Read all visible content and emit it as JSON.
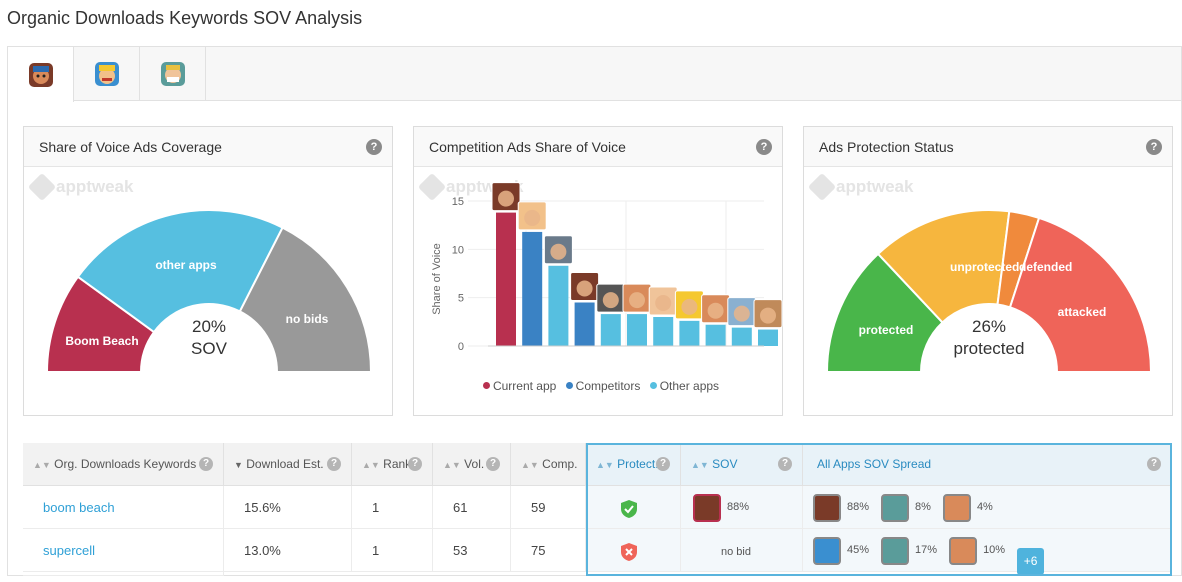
{
  "page": {
    "title": "Organic Downloads Keywords SOV Analysis"
  },
  "tabs": [
    {
      "icon": "boom-beach-app-icon"
    },
    {
      "icon": "clash-of-clans-app-icon"
    },
    {
      "icon": "clash-royale-app-icon"
    }
  ],
  "watermark": "apptweak",
  "panels": {
    "coverage": {
      "title": "Share of Voice Ads Coverage",
      "center_value": "20%",
      "center_label": "SOV",
      "segments": [
        {
          "label": "Boom Beach",
          "value": 20,
          "color": "#b8304f"
        },
        {
          "label": "other apps",
          "value": 45,
          "color": "#56bfe0"
        },
        {
          "label": "no bids",
          "value": 35,
          "color": "#999999"
        }
      ]
    },
    "competition": {
      "title": "Competition Ads Share of Voice",
      "ylabel": "Share of Voice",
      "legend": [
        {
          "label": "Current app",
          "color": "#b8304f"
        },
        {
          "label": "Competitors",
          "color": "#3a82c4"
        },
        {
          "label": "Other apps",
          "color": "#56bfe0"
        }
      ]
    },
    "protection": {
      "title": "Ads Protection Status",
      "center_value": "26%",
      "center_label": "protected",
      "segments": [
        {
          "label": "protected",
          "value": 26,
          "color": "#49b64a"
        },
        {
          "label": "unprotected",
          "value": 28,
          "color": "#f6b63e"
        },
        {
          "label": "defended",
          "value": 6,
          "color": "#f08a3c"
        },
        {
          "label": "attacked",
          "value": 40,
          "color": "#ef6459"
        }
      ]
    }
  },
  "chart_data": {
    "type": "bar",
    "ylabel": "Share of Voice",
    "ylim": [
      0,
      15
    ],
    "yticks": [
      0,
      5,
      10,
      15
    ],
    "values": [
      13.8,
      11.8,
      8.3,
      4.5,
      3.3,
      3.3,
      3.0,
      2.6,
      2.2,
      1.9,
      1.7
    ],
    "groups": [
      "current",
      "competitor",
      "other",
      "competitor",
      "other",
      "other",
      "other",
      "other",
      "other",
      "other",
      "other"
    ],
    "legend": [
      "Current app",
      "Competitors",
      "Other apps"
    ]
  },
  "table": {
    "headers": {
      "keyword": "Org. Downloads Keywords",
      "download": "Download Est.",
      "rank": "Rank",
      "vol": "Vol.",
      "comp": "Comp.",
      "protect": "Protect.",
      "sov": "SOV",
      "spread": "All Apps SOV Spread"
    },
    "rows": [
      {
        "keyword": "boom beach",
        "download": "15.6%",
        "rank": "1",
        "vol": "61",
        "comp": "59",
        "protected": true,
        "sov": "88%",
        "spread": [
          {
            "icon": "boom-beach",
            "value": "88%"
          },
          {
            "icon": "clash-royale",
            "value": "8%"
          },
          {
            "icon": "boom-beach-alt",
            "value": "4%"
          }
        ],
        "more": ""
      },
      {
        "keyword": "supercell",
        "download": "13.0%",
        "rank": "1",
        "vol": "53",
        "comp": "75",
        "protected": false,
        "sov": "no bid",
        "spread": [
          {
            "icon": "clash-of-clans",
            "value": "45%"
          },
          {
            "icon": "clash-royale",
            "value": "17%"
          },
          {
            "icon": "boom-beach-alt",
            "value": "10%"
          }
        ],
        "more": "+6"
      }
    ]
  }
}
